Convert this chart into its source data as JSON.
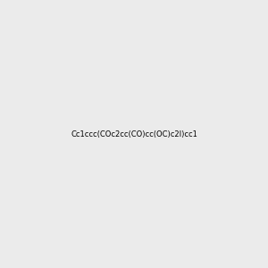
{
  "smiles": "Cc1ccc(COc2cc(CO)cc(OC)c2I)cc1",
  "background_color": "#EBEBEB",
  "fig_size": [
    3.0,
    3.0
  ],
  "dpi": 100
}
